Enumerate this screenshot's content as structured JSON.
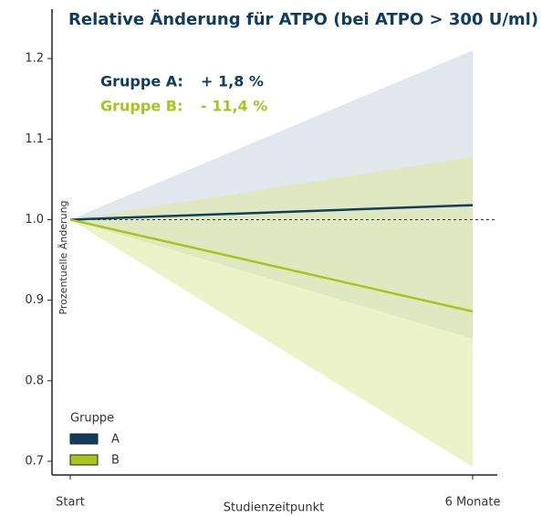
{
  "chart_data": {
    "type": "line",
    "title": "Relative Änderung für ATPO (bei ATPO > 300 U/ml)",
    "x_label": "Studienzeitpunkt",
    "y_label": "Prozentuelle Änderung",
    "categories": [
      "Start",
      "6 Monate"
    ],
    "series": [
      {
        "name": "A",
        "color": "#0e3d5f",
        "band_color": "#c9d3de",
        "values": [
          1,
          1.018
        ],
        "lower": [
          1,
          0.852
        ],
        "upper": [
          1,
          1.21
        ]
      },
      {
        "name": "B",
        "color": "#a9c41a",
        "band_color": "#dfe99a",
        "values": [
          1,
          0.886
        ],
        "lower": [
          1,
          0.693
        ],
        "upper": [
          1,
          1.078
        ]
      }
    ],
    "annotations": [
      {
        "label": "Gruppe A:",
        "value_label": "+  1,8 %"
      },
      {
        "label": "Gruppe B:",
        "value_label": "- 11,4 %"
      }
    ],
    "legend_title": "Gruppe",
    "reference_line": 1,
    "ylim": [
      0.683,
      1.25
    ],
    "yticks": [
      0.7,
      0.8,
      0.9,
      {
        "value": 1,
        "label": "1.0"
      },
      1.1,
      1.2
    ]
  }
}
